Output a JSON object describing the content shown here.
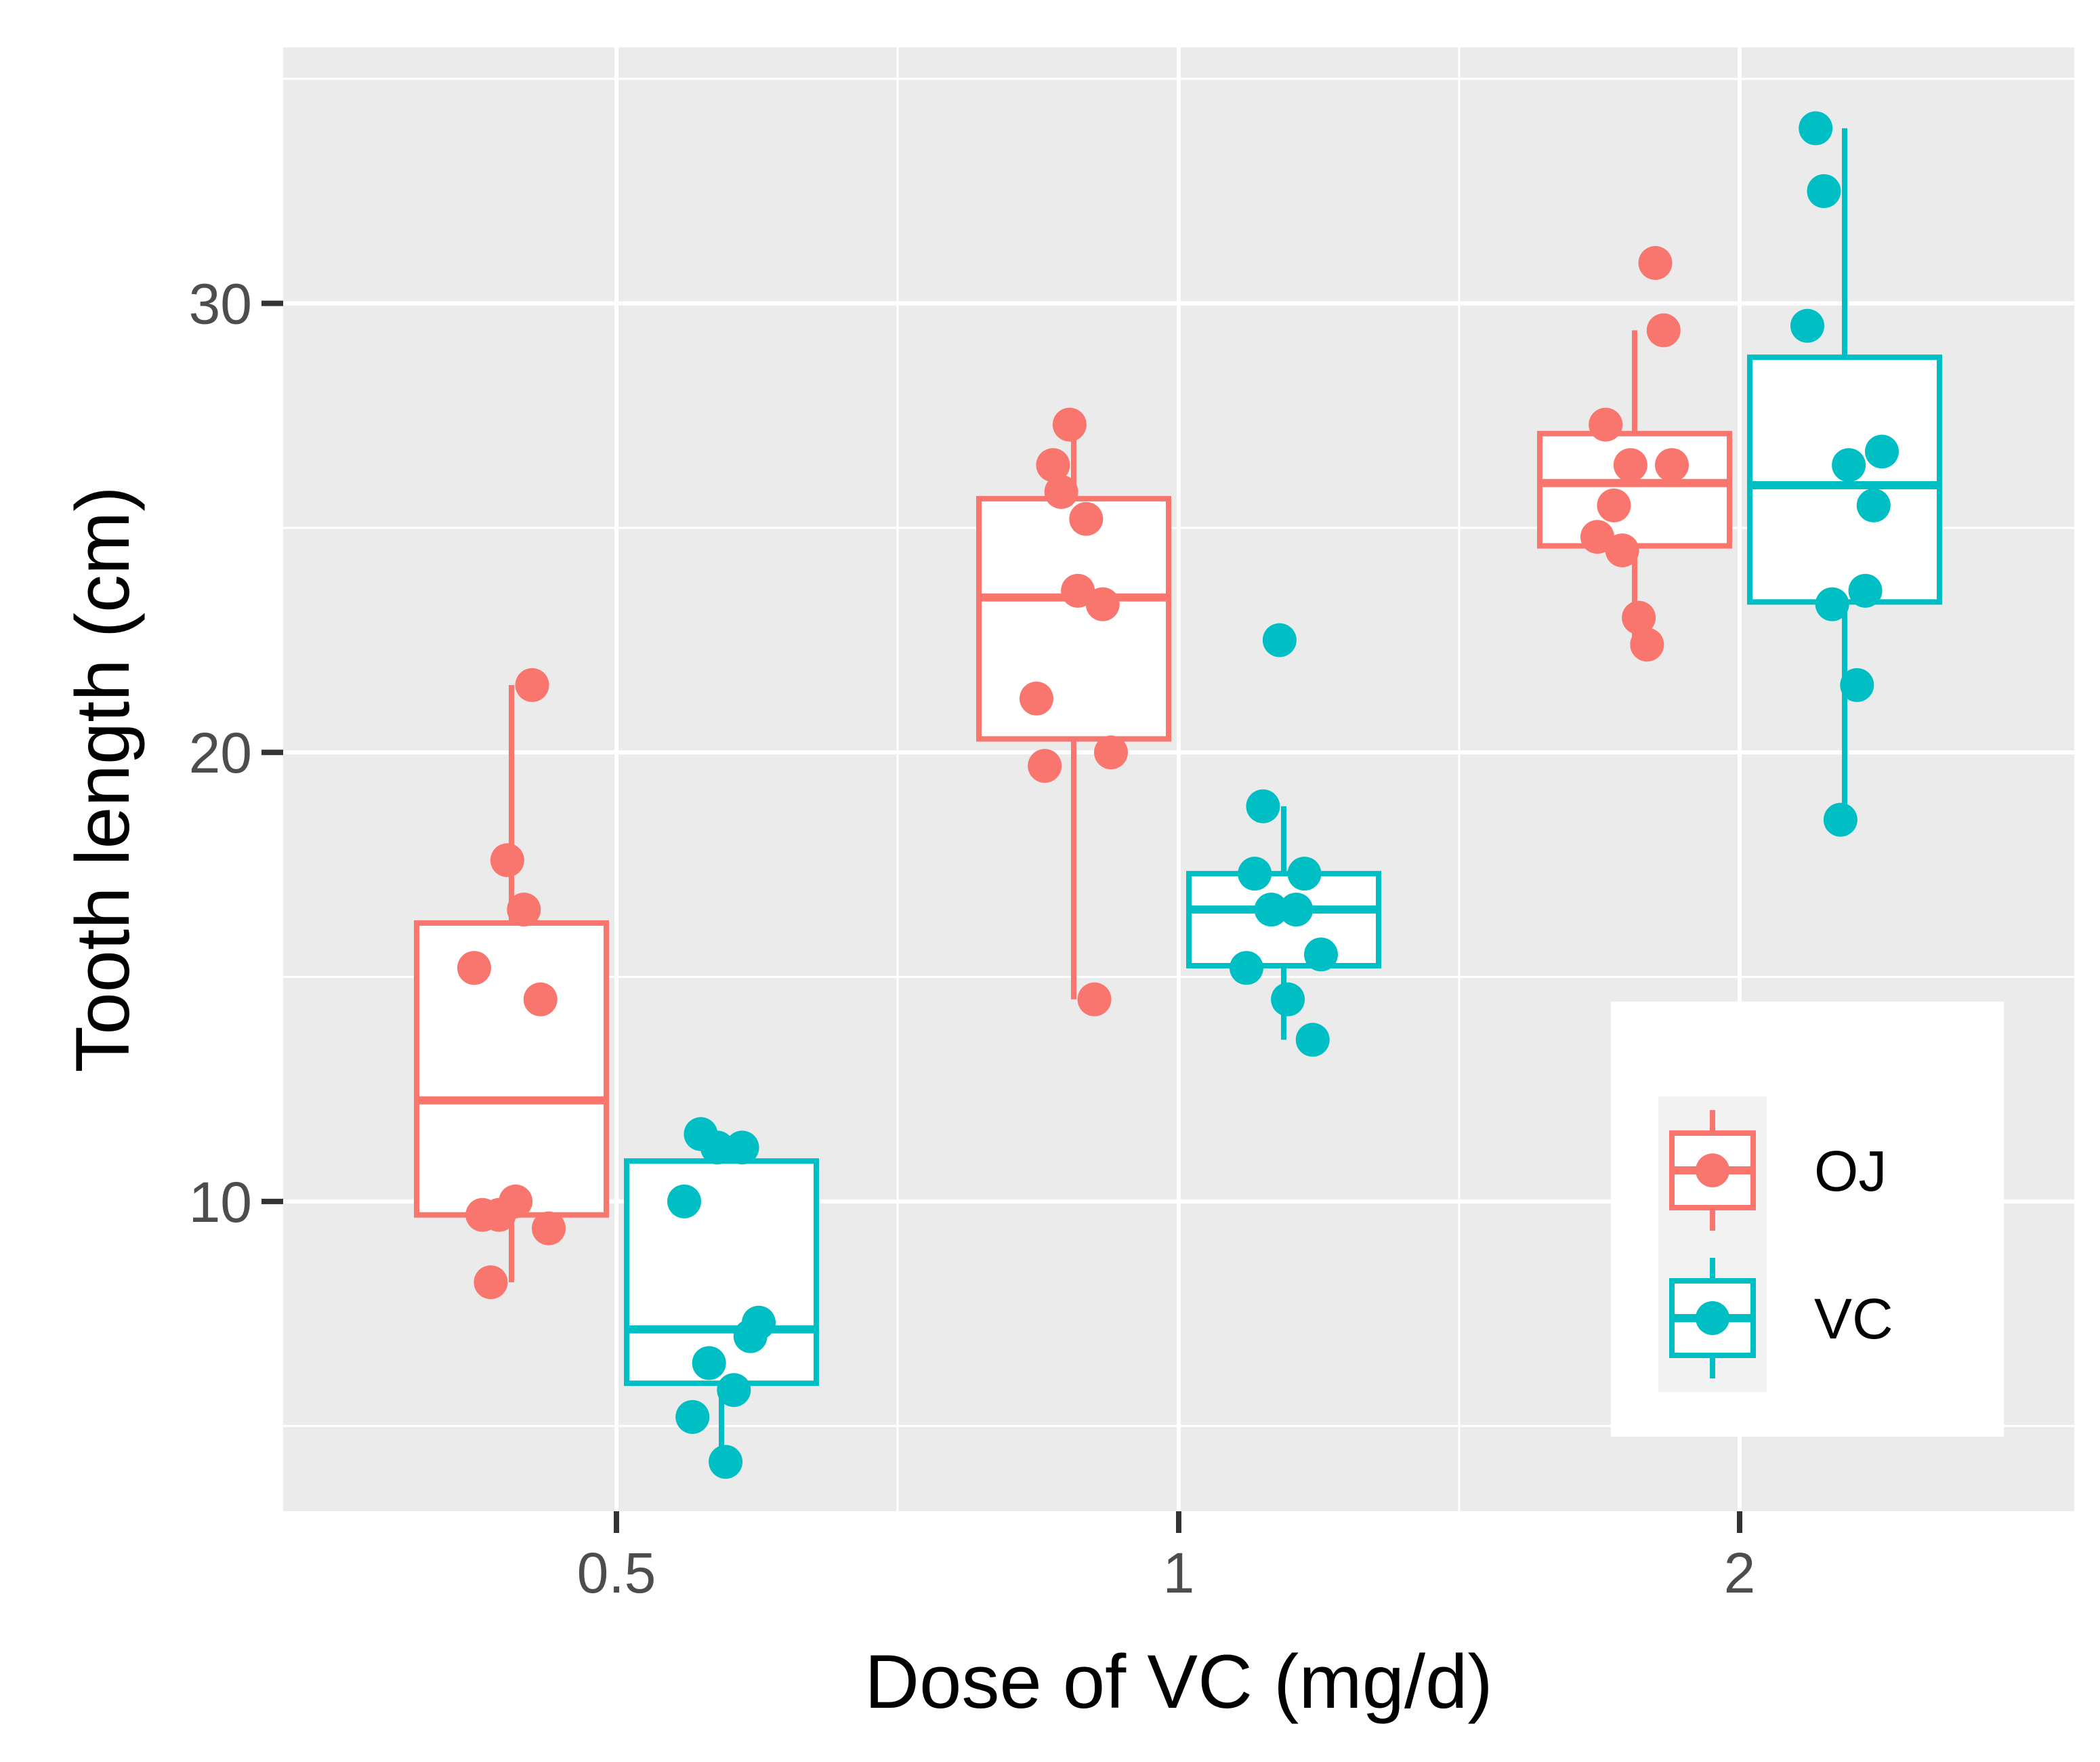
{
  "chart_data": {
    "type": "boxplot",
    "title": "",
    "xlabel": "Dose of VC (mg/d)",
    "ylabel": "Tooth length (cm)",
    "categories": [
      "0.5",
      "1",
      "2"
    ],
    "ylim": [
      3.1,
      35.7
    ],
    "y_major_ticks": [
      10,
      20,
      30
    ],
    "y_tick_labels": [
      "10",
      "20",
      "30"
    ],
    "grid": true,
    "legend_position": "bottom-right",
    "series": [
      {
        "name": "OJ",
        "color": "#F8766D",
        "boxes": [
          {
            "category": "0.5",
            "min": 8.2,
            "q1": 9.7,
            "median": 12.25,
            "q3": 16.2,
            "max": 21.5
          },
          {
            "category": "1",
            "min": 14.5,
            "q1": 20.3,
            "median": 23.45,
            "q3": 25.65,
            "max": 27.3
          },
          {
            "category": "2",
            "min": 22.4,
            "q1": 24.6,
            "median": 26.0,
            "q3": 27.1,
            "max": 29.4
          }
        ],
        "points": [
          {
            "category": "0.5",
            "values": [
              15.2,
              21.5,
              17.6,
              9.7,
              14.5,
              10.0,
              8.2,
              9.4,
              16.5,
              9.7
            ]
          },
          {
            "category": "1",
            "values": [
              19.7,
              23.3,
              23.6,
              26.4,
              20.0,
              25.2,
              25.8,
              21.2,
              14.5,
              27.3
            ]
          },
          {
            "category": "2",
            "values": [
              25.5,
              26.4,
              22.4,
              24.5,
              24.8,
              30.9,
              26.4,
              27.3,
              29.4,
              23.0
            ]
          }
        ]
      },
      {
        "name": "VC",
        "color": "#00BFC4",
        "boxes": [
          {
            "category": "0.5",
            "min": 4.2,
            "q1": 5.95,
            "median": 7.15,
            "q3": 10.9,
            "max": 11.5
          },
          {
            "category": "1",
            "min": 13.6,
            "q1": 15.25,
            "median": 16.5,
            "q3": 17.3,
            "max": 18.8
          },
          {
            "category": "2",
            "min": 18.5,
            "q1": 23.35,
            "median": 25.95,
            "q3": 28.8,
            "max": 33.9
          }
        ],
        "points": [
          {
            "category": "0.5",
            "values": [
              4.2,
              11.5,
              7.3,
              5.8,
              6.4,
              10.0,
              11.2,
              11.2,
              5.2,
              7.0
            ]
          },
          {
            "category": "1",
            "values": [
              16.5,
              16.5,
              15.2,
              17.3,
              22.5,
              17.3,
              13.6,
              14.5,
              18.8,
              15.5
            ]
          },
          {
            "category": "2",
            "values": [
              23.6,
              18.5,
              33.9,
              25.5,
              26.4,
              32.5,
              26.7,
              21.5,
              23.3,
              29.5
            ]
          }
        ]
      }
    ]
  }
}
